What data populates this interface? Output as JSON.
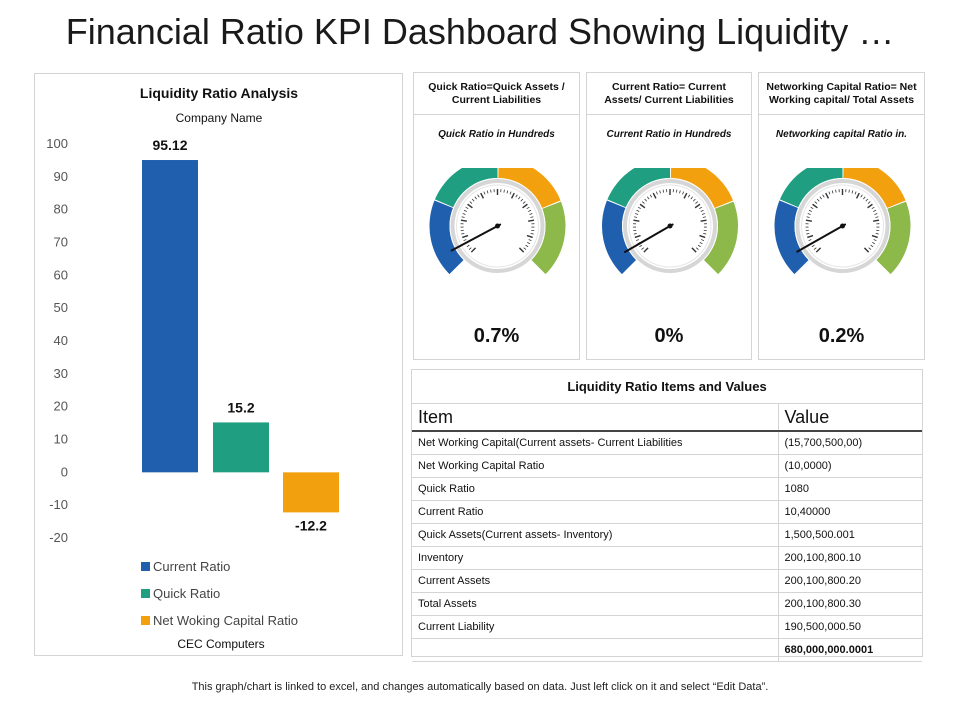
{
  "title": "Financial Ratio KPI Dashboard Showing Liquidity …",
  "colors": {
    "blue": "#1f5fae",
    "teal": "#1f9e82",
    "orange": "#f2a00d",
    "green": "#8db84a",
    "ring": "#d6d6d6"
  },
  "chart_data": {
    "type": "bar",
    "title": "Liquidity Ratio Analysis",
    "subtitle": "Company Name",
    "xlabel": "CEC Computers",
    "ylabel": "",
    "ylim": [
      -20,
      100
    ],
    "yticks": [
      100,
      90,
      80,
      70,
      60,
      50,
      40,
      30,
      20,
      10,
      0,
      -10,
      -20
    ],
    "categories": [
      "Current Ratio",
      "Quick Ratio",
      "Net Woking Capital Ratio"
    ],
    "values": [
      95.12,
      15.2,
      -12.2
    ],
    "value_labels": [
      "95.12",
      "15.2",
      "-12.2"
    ],
    "series_colors": [
      "#1f5fae",
      "#1f9e82",
      "#f2a00d"
    ],
    "grid": false,
    "legend_position": "bottom"
  },
  "gauges": [
    {
      "header": "Quick Ratio=Quick Assets / Current Liabilities",
      "subtitle": "Quick Ratio in Hundreds",
      "value": 0.7,
      "value_label": "0.7%"
    },
    {
      "header": "Current Ratio= Current Assets/ Current Liabilities",
      "subtitle": "Current Ratio in Hundreds",
      "value": 0,
      "value_label": "0%"
    },
    {
      "header": "Networking Capital Ratio= Net Working capital/ Total Assets",
      "subtitle": "Networking capital Ratio in.",
      "value": 0.2,
      "value_label": "0.2%"
    }
  ],
  "table": {
    "caption": "Liquidity Ratio Items and Values",
    "headers": [
      "Item",
      "Value"
    ],
    "rows": [
      [
        "Net Working Capital(Current assets- Current Liabilities",
        "(15,700,500,00)"
      ],
      [
        "Net Working Capital Ratio",
        "(10,0000)"
      ],
      [
        "Quick Ratio",
        "1080"
      ],
      [
        "Current Ratio",
        "10,40000"
      ],
      [
        "Quick Assets(Current assets- Inventory)",
        "1,500,500.001"
      ],
      [
        "Inventory",
        "200,100,800.10"
      ],
      [
        "Current Assets",
        "200,100,800.20"
      ],
      [
        "Total Assets",
        "200,100,800.30"
      ],
      [
        "Current Liability",
        "190,500,000.50"
      ],
      [
        "",
        "680,000,000.0001"
      ]
    ]
  },
  "footnote": "This graph/chart is linked to excel, and changes automatically based on data. Just left click on it and select “Edit Data”."
}
